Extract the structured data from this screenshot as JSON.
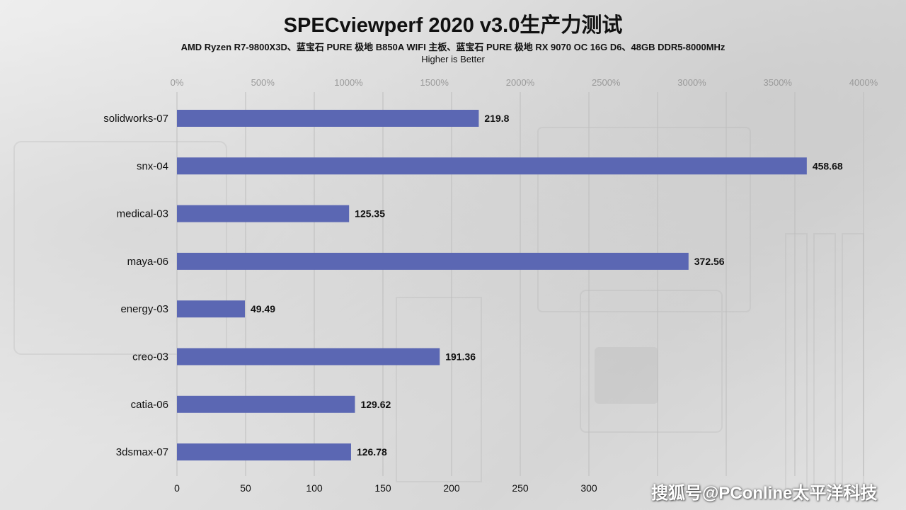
{
  "title": "SPECviewperf 2020 v3.0生产力测试",
  "subtitle": "AMD Ryzen R7-9800X3D、蓝宝石 PURE 极地 B850A WIFI 主板、蓝宝石 PURE 极地 RX 9070 OC 16G D6、48GB DDR5-8000MHz",
  "note": "Higher is Better",
  "watermark": "搜狐号@PConline太平洋科技",
  "colors": {
    "bar": "#5b67b3",
    "grid": "#bdbdbd",
    "text": "#111111",
    "top_tick": "#9a9a9a"
  },
  "chart_data": {
    "type": "bar",
    "orientation": "horizontal",
    "categories": [
      "solidworks-07",
      "snx-04",
      "medical-03",
      "maya-06",
      "energy-03",
      "creo-03",
      "catia-06",
      "3dsmax-07"
    ],
    "values": [
      219.8,
      458.68,
      125.35,
      372.56,
      49.49,
      191.36,
      129.62,
      126.78
    ],
    "data_labels": [
      "219.8",
      "458.68",
      "125.35",
      "372.56",
      "49.49",
      "191.36",
      "129.62",
      "126.78"
    ],
    "xlim": [
      0,
      500
    ],
    "xticks_bottom": [
      "0",
      "50",
      "100",
      "150",
      "200",
      "250",
      "300"
    ],
    "xticks_top": [
      "0%",
      "500%",
      "1000%",
      "1500%",
      "2000%",
      "2500%",
      "3000%",
      "3500%",
      "4000%"
    ],
    "grid": true,
    "legend": "none"
  }
}
